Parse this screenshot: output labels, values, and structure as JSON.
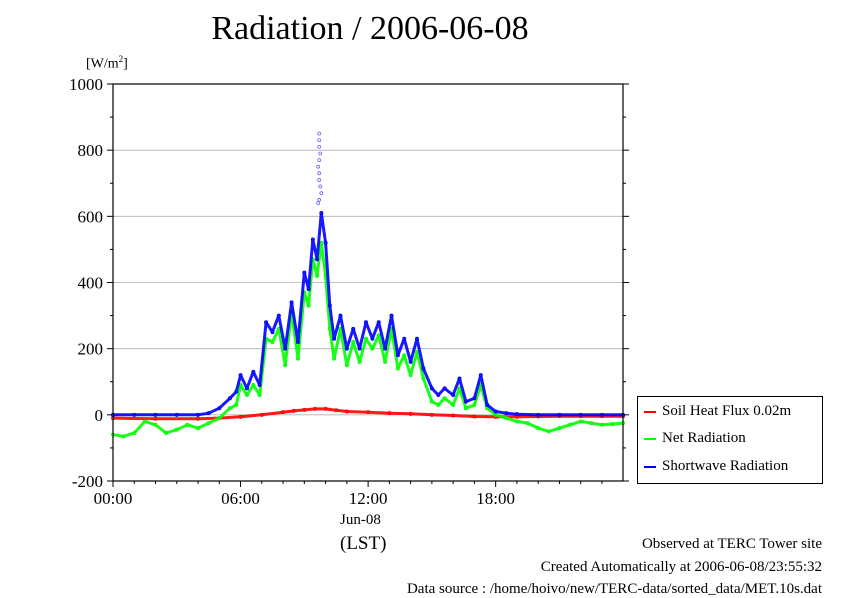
{
  "chart_data": {
    "type": "line",
    "title": "Radiation / 2006-06-08",
    "unit_label_base": "[W/m",
    "unit_label_sup": "2",
    "unit_label_end": "]",
    "xlabel": "(LST)",
    "date_label": "Jun-08",
    "x_ticks": [
      "00:00",
      "06:00",
      "12:00",
      "18:00"
    ],
    "x_tick_values": [
      0,
      6,
      12,
      18
    ],
    "y_ticks": [
      "1000",
      "800",
      "600",
      "400",
      "200",
      "0",
      "-200"
    ],
    "y_tick_values": [
      1000,
      800,
      600,
      400,
      200,
      0,
      -200
    ],
    "xlim": [
      0,
      23.99
    ],
    "ylim": [
      -200,
      1000
    ],
    "grid": "horizontal",
    "legend_position": "bottom-right outside",
    "series": [
      {
        "name": "Soil Heat Flux 0.02m",
        "color": "#ff0000",
        "x": [
          0,
          2,
          4,
          5,
          6,
          7,
          8,
          8.5,
          9,
          9.5,
          10,
          10.5,
          11,
          12,
          13,
          14,
          15,
          16,
          17,
          18,
          19,
          20,
          21,
          22,
          23,
          23.99
        ],
        "y": [
          -10,
          -12,
          -12,
          -10,
          -6,
          0,
          8,
          12,
          15,
          18,
          18,
          14,
          10,
          8,
          5,
          3,
          0,
          -2,
          -5,
          -6,
          -6,
          -5,
          -4,
          -4,
          -4,
          -4
        ]
      },
      {
        "name": "Net Radiation",
        "color": "#00ff00",
        "x": [
          0,
          0.5,
          1,
          1.5,
          2,
          2.5,
          3,
          3.5,
          4,
          4.5,
          5,
          5.5,
          5.8,
          6,
          6.3,
          6.6,
          6.9,
          7.2,
          7.5,
          7.8,
          8.1,
          8.4,
          8.7,
          9,
          9.2,
          9.4,
          9.6,
          9.8,
          10,
          10.2,
          10.4,
          10.7,
          11,
          11.3,
          11.6,
          11.9,
          12.2,
          12.5,
          12.8,
          13.1,
          13.4,
          13.7,
          14,
          14.3,
          14.6,
          15,
          15.3,
          15.6,
          16,
          16.3,
          16.6,
          17,
          17.3,
          17.6,
          18,
          18.5,
          19,
          19.5,
          20,
          20.5,
          21,
          21.5,
          22,
          22.5,
          23,
          23.5,
          23.99
        ],
        "y": [
          -60,
          -65,
          -55,
          -20,
          -30,
          -55,
          -45,
          -30,
          -40,
          -25,
          -10,
          20,
          30,
          90,
          60,
          90,
          60,
          230,
          220,
          260,
          150,
          310,
          170,
          370,
          330,
          470,
          420,
          520,
          420,
          260,
          170,
          260,
          150,
          220,
          160,
          230,
          200,
          240,
          160,
          260,
          140,
          180,
          120,
          190,
          110,
          40,
          30,
          50,
          30,
          80,
          20,
          30,
          90,
          20,
          0,
          -10,
          -20,
          -25,
          -40,
          -50,
          -40,
          -30,
          -20,
          -25,
          -30,
          -28,
          -25
        ]
      },
      {
        "name": "Shortwave Radiation",
        "color": "#0000ff",
        "x": [
          0,
          1,
          2,
          3,
          4,
          4.5,
          5,
          5.5,
          5.8,
          6,
          6.3,
          6.6,
          6.9,
          7.2,
          7.5,
          7.8,
          8.1,
          8.4,
          8.7,
          9,
          9.2,
          9.4,
          9.6,
          9.8,
          10,
          10.2,
          10.4,
          10.7,
          11,
          11.3,
          11.6,
          11.9,
          12.2,
          12.5,
          12.8,
          13.1,
          13.4,
          13.7,
          14,
          14.3,
          14.6,
          15,
          15.3,
          15.6,
          16,
          16.3,
          16.6,
          17,
          17.3,
          17.6,
          18,
          18.5,
          19,
          20,
          21,
          22,
          23,
          23.99
        ],
        "y": [
          0,
          0,
          0,
          0,
          0,
          5,
          20,
          50,
          70,
          120,
          80,
          130,
          90,
          280,
          250,
          300,
          200,
          340,
          220,
          430,
          380,
          530,
          470,
          610,
          520,
          330,
          230,
          300,
          200,
          260,
          200,
          280,
          230,
          280,
          200,
          300,
          180,
          230,
          160,
          230,
          140,
          80,
          60,
          80,
          60,
          110,
          40,
          50,
          120,
          30,
          10,
          5,
          2,
          0,
          0,
          0,
          0,
          0
        ]
      }
    ],
    "outlier_points": {
      "color": "#6666ff",
      "x": [
        9.7,
        9.7,
        9.7,
        9.75,
        9.7,
        9.65,
        9.7,
        9.7,
        9.75,
        9.8,
        9.7,
        9.65
      ],
      "y": [
        850,
        830,
        810,
        790,
        770,
        750,
        730,
        710,
        690,
        670,
        650,
        640
      ]
    }
  },
  "footer": {
    "line1": "Observed at TERC Tower site",
    "line2": "Created Automatically at 2006-06-08/23:55:32",
    "line3": "Data source : /home/hoivo/new/TERC-data/sorted_data/MET.10s.dat"
  }
}
